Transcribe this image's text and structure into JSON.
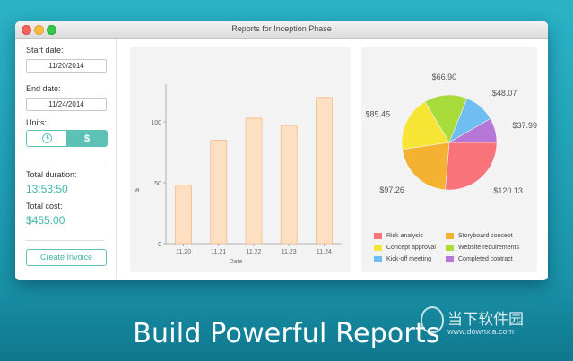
{
  "window": {
    "title": "Reports for Inception Phase"
  },
  "sidebar": {
    "start_date_label": "Start date:",
    "start_date_value": "11/20/2014",
    "end_date_label": "End date:",
    "end_date_value": "11/24/2014",
    "units_label": "Units:",
    "units_options": {
      "time_icon": "clock-icon",
      "cost_symbol": "$",
      "selected": "cost"
    },
    "total_duration_label": "Total duration:",
    "total_duration_value": "13:53:50",
    "total_cost_label": "Total cost:",
    "total_cost_value": "$455.00",
    "create_invoice_label": "Create Invoice"
  },
  "chart_data": [
    {
      "type": "bar",
      "categories": [
        "11.20",
        "11.21",
        "11.22",
        "11.23",
        "11.24"
      ],
      "values": [
        48,
        85,
        103,
        97,
        120
      ],
      "xlabel": "Date",
      "ylabel": "$",
      "yticks": [
        0,
        50,
        100
      ],
      "ylim": [
        0,
        125
      ],
      "bar_color": "#fde0c2",
      "bar_stroke": "#f2b98a"
    },
    {
      "type": "pie",
      "labels": [
        "Risk analysis",
        "Storyboard concept",
        "Concept approval",
        "Website requirements",
        "Kick-off meeting",
        "Completed contract"
      ],
      "values": [
        120.13,
        97.26,
        85.45,
        66.9,
        48.07,
        37.99
      ],
      "value_labels": [
        "$120.13",
        "$97.26",
        "$85.45",
        "$66.90",
        "$48.07",
        "$37.99"
      ],
      "colors": [
        "#f8737a",
        "#f5b131",
        "#f7e536",
        "#a7dc3a",
        "#6fbdf1",
        "#b777d9"
      ]
    }
  ],
  "legend": [
    {
      "label": "Risk analysis",
      "color": "#f8737a"
    },
    {
      "label": "Storyboard concept",
      "color": "#f5b131"
    },
    {
      "label": "Concept approval",
      "color": "#f7e536"
    },
    {
      "label": "Website requirements",
      "color": "#a7dc3a"
    },
    {
      "label": "Kick-off meeting",
      "color": "#6fbdf1"
    },
    {
      "label": "Completed contract",
      "color": "#b777d9"
    }
  ],
  "tagline": "Build Powerful Reports",
  "watermark": {
    "text": "当下软件园",
    "url": "www.downxia.com"
  }
}
